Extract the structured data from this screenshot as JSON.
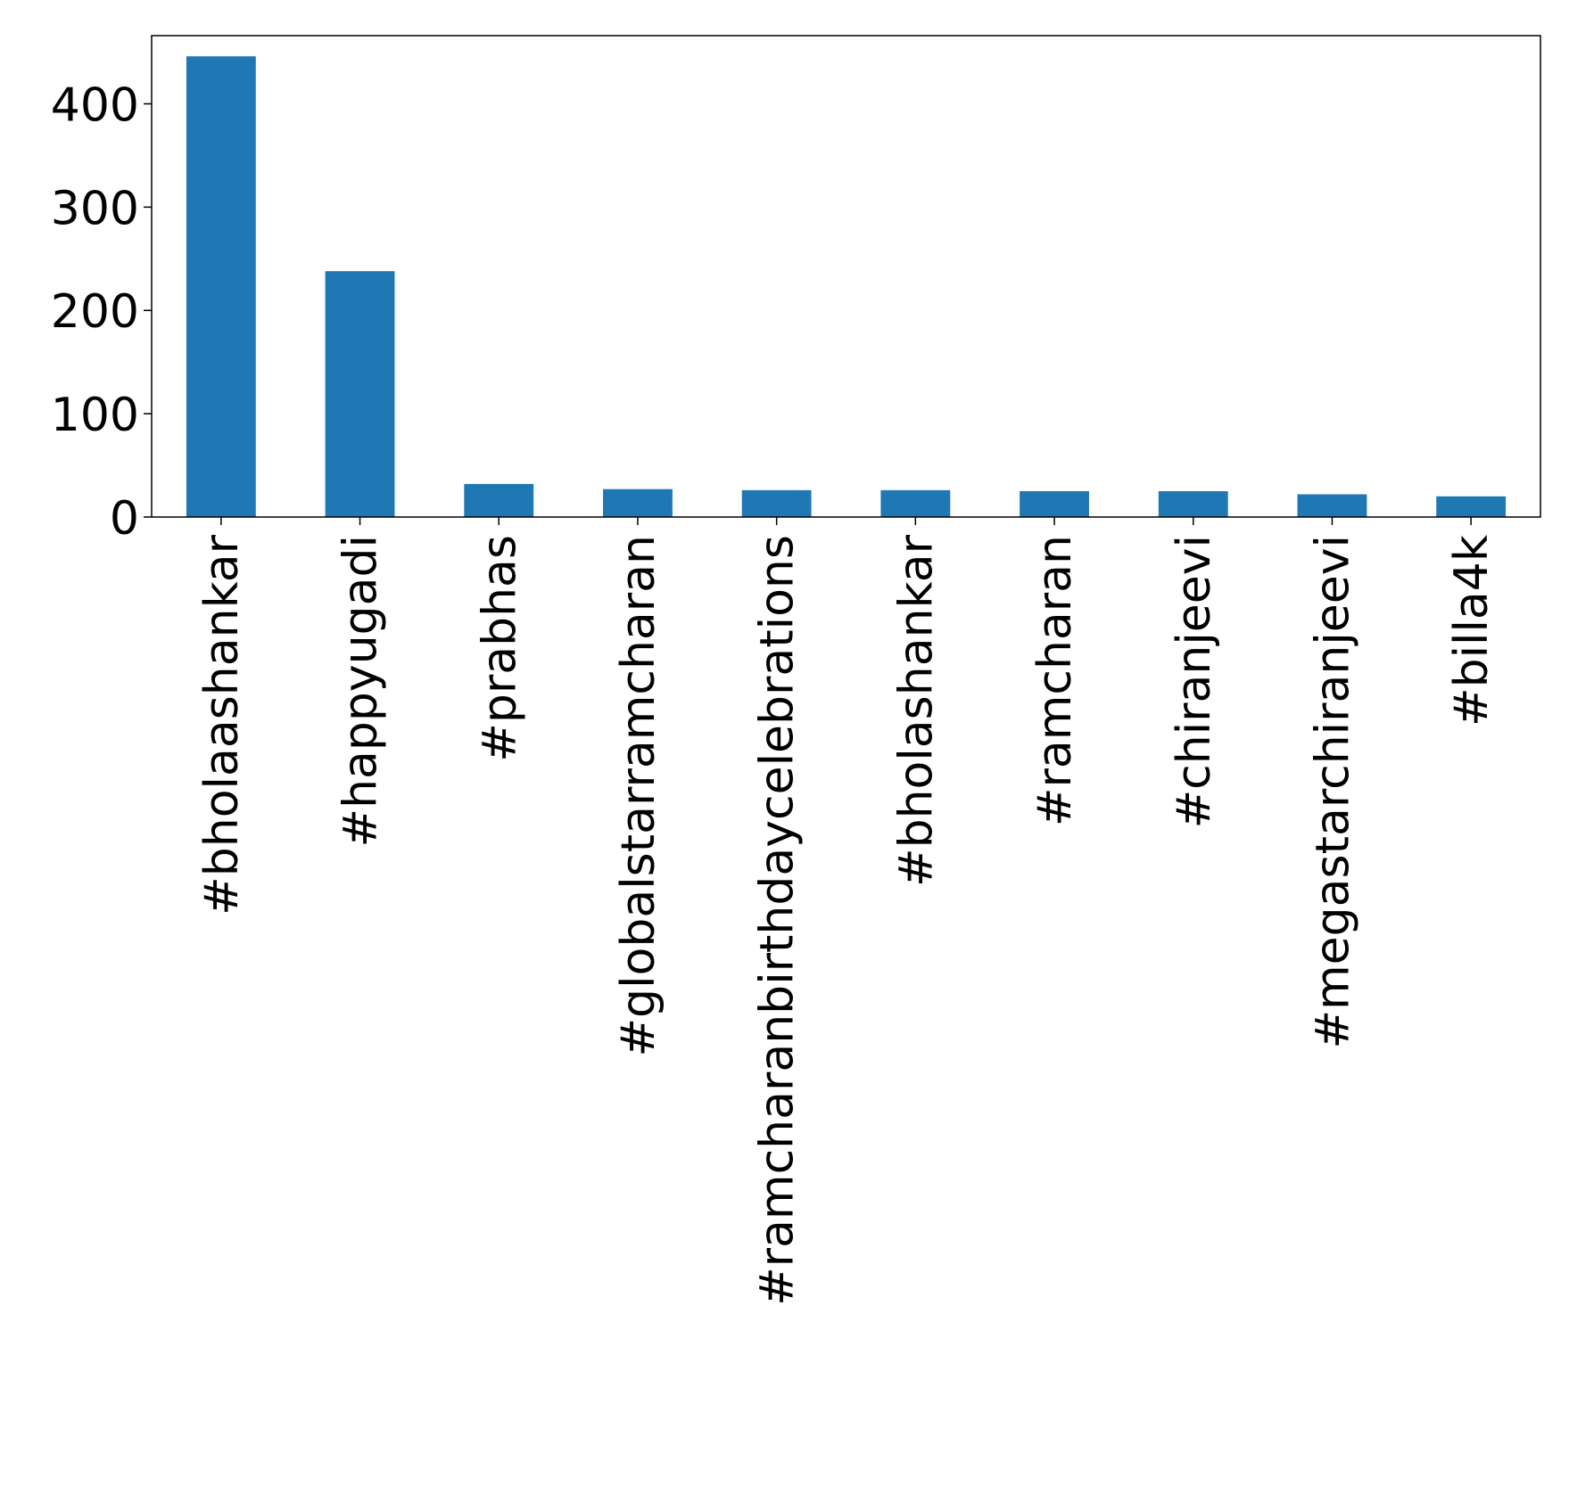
{
  "chart_data": {
    "type": "bar",
    "title": "",
    "xlabel": "",
    "ylabel": "",
    "categories": [
      "#bholaashankar",
      "#happyugadi",
      "#prabhas",
      "#globalstarramcharan",
      "#ramcharanbirthdaycelebrations",
      "#bholashankar",
      "#ramcharan",
      "#chiranjeevi",
      "#megastarchiranjeevi",
      "#billa4k"
    ],
    "values": [
      446,
      238,
      32,
      27,
      26,
      26,
      25,
      25,
      22,
      20
    ],
    "ylim": [
      0,
      466
    ],
    "yticks": [
      0,
      100,
      200,
      300,
      400
    ],
    "grid": false,
    "legend": "none",
    "bar_color": "#1f77b4"
  }
}
